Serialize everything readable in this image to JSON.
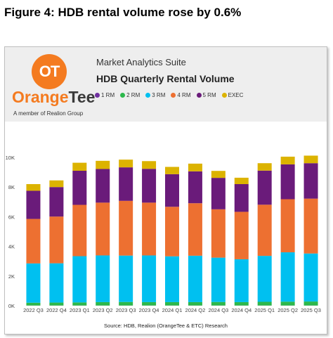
{
  "figure_title": "Figure 4: HDB rental volume rose by 0.6%",
  "logo": {
    "mark": "OT",
    "brand_prefix": "Orange",
    "brand_suffix": "Tee",
    "tagline": "A member of Realion Group"
  },
  "suite": "Market Analytics Suite",
  "colors": {
    "1 RM": "#7030a0",
    "2 RM": "#2db84c",
    "3 RM": "#00c0f0",
    "4 RM": "#ed7031",
    "5 RM": "#6a1b7a",
    "EXEC": "#dcb300",
    "brand": "#f47b20"
  },
  "chart_data": {
    "type": "bar",
    "stacked": true,
    "title": "HDB Quarterly Rental Volume",
    "source": "Source: HDB, Realion (OrangeTee & ETC) Research",
    "legend_position": "top",
    "grid": false,
    "ylim": [
      0,
      10000
    ],
    "yticks": [
      "0K",
      "2K",
      "4K",
      "6K",
      "8K",
      "10K"
    ],
    "categories": [
      "2022 Q3",
      "2022 Q4",
      "2023 Q1",
      "2023 Q2",
      "2023 Q3",
      "2023 Q4",
      "2024 Q1",
      "2024 Q2",
      "2024 Q3",
      "2024 Q4",
      "2025 Q1",
      "2025 Q2",
      "2025 Q3"
    ],
    "series": [
      {
        "name": "1 RM",
        "values": [
          10,
          10,
          10,
          10,
          10,
          10,
          10,
          10,
          10,
          10,
          10,
          10,
          10
        ]
      },
      {
        "name": "2 RM",
        "values": [
          190,
          200,
          210,
          230,
          240,
          230,
          230,
          230,
          240,
          230,
          250,
          260,
          270
        ]
      },
      {
        "name": "3 RM",
        "values": [
          2650,
          2650,
          3120,
          3150,
          3130,
          3150,
          3090,
          3130,
          2990,
          2890,
          3100,
          3330,
          3240
        ]
      },
      {
        "name": "4 RM",
        "values": [
          3000,
          3150,
          3460,
          3560,
          3690,
          3560,
          3340,
          3540,
          3260,
          3200,
          3450,
          3580,
          3700
        ]
      },
      {
        "name": "5 RM",
        "values": [
          1900,
          1990,
          2300,
          2270,
          2260,
          2280,
          2200,
          2150,
          2120,
          1870,
          2300,
          2350,
          2390
        ]
      },
      {
        "name": "EXEC",
        "values": [
          450,
          450,
          540,
          550,
          520,
          520,
          490,
          520,
          470,
          430,
          500,
          520,
          510
        ]
      }
    ]
  }
}
